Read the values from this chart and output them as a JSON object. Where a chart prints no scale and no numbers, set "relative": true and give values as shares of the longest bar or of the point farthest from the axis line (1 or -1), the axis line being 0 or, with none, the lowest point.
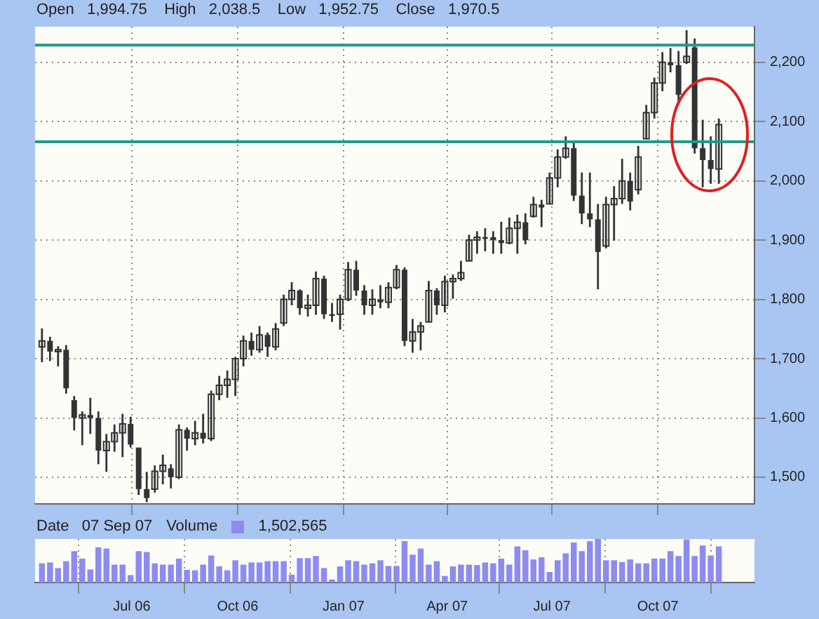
{
  "chart_data": [
    {
      "type": "candlestick",
      "subtitle": "Open   1,994.75    High   2,038.5    Low   1,952.75    Close   1,970.5",
      "color": "#333333",
      "x": [
        "2006-04-14",
        "2006-04-21",
        "2006-04-28",
        "2006-05-05",
        "2006-05-12",
        "2006-05-19",
        "2006-05-26",
        "2006-06-02",
        "2006-06-09",
        "2006-06-16",
        "2006-06-23",
        "2006-06-30",
        "2006-07-07",
        "2006-07-14",
        "2006-07-21",
        "2006-07-28",
        "2006-08-04",
        "2006-08-11",
        "2006-08-18",
        "2006-08-25",
        "2006-09-01",
        "2006-09-08",
        "2006-09-15",
        "2006-09-22",
        "2006-09-29",
        "2006-10-06",
        "2006-10-13",
        "2006-10-20",
        "2006-10-27",
        "2006-11-03",
        "2006-11-10",
        "2006-11-17",
        "2006-11-24",
        "2006-12-01",
        "2006-12-08",
        "2006-12-15",
        "2006-12-22",
        "2006-12-29",
        "2007-01-05",
        "2007-01-12",
        "2007-01-19",
        "2007-01-26",
        "2007-02-02",
        "2007-02-09",
        "2007-02-16",
        "2007-02-23",
        "2007-03-02",
        "2007-03-09",
        "2007-03-16",
        "2007-03-23",
        "2007-03-30",
        "2007-04-06",
        "2007-04-13",
        "2007-04-20",
        "2007-04-27",
        "2007-05-04",
        "2007-05-11",
        "2007-05-18",
        "2007-05-25",
        "2007-06-01",
        "2007-06-08",
        "2007-06-15",
        "2007-06-22",
        "2007-06-29",
        "2007-07-06",
        "2007-07-13",
        "2007-07-20",
        "2007-07-27",
        "2007-08-03",
        "2007-08-10",
        "2007-08-17",
        "2007-08-24",
        "2007-08-31",
        "2007-09-07",
        "2007-09-14",
        "2007-09-21",
        "2007-09-28",
        "2007-10-05",
        "2007-10-12",
        "2007-10-19",
        "2007-10-26",
        "2007-11-02",
        "2007-11-09",
        "2007-11-16",
        "2007-11-23"
      ],
      "ohlc": [
        [
          1720,
          1751,
          1694,
          1730
        ],
        [
          1730,
          1737,
          1696,
          1712
        ],
        [
          1712,
          1721,
          1687,
          1715
        ],
        [
          1715,
          1723,
          1641,
          1650
        ],
        [
          1630,
          1637,
          1579,
          1600
        ],
        [
          1600,
          1611,
          1554,
          1605
        ],
        [
          1605,
          1634,
          1573,
          1600
        ],
        [
          1600,
          1611,
          1522,
          1545
        ],
        [
          1545,
          1573,
          1509,
          1560
        ],
        [
          1560,
          1589,
          1543,
          1575
        ],
        [
          1575,
          1607,
          1534,
          1590
        ],
        [
          1590,
          1602,
          1550,
          1555
        ],
        [
          1550,
          1550,
          1470,
          1480
        ],
        [
          1480,
          1509,
          1458,
          1465
        ],
        [
          1480,
          1520,
          1474,
          1510
        ],
        [
          1510,
          1538,
          1488,
          1520
        ],
        [
          1515,
          1522,
          1481,
          1500
        ],
        [
          1500,
          1589,
          1497,
          1580
        ],
        [
          1580,
          1584,
          1545,
          1565
        ],
        [
          1565,
          1595,
          1554,
          1575
        ],
        [
          1575,
          1607,
          1557,
          1565
        ],
        [
          1565,
          1646,
          1561,
          1640
        ],
        [
          1640,
          1671,
          1630,
          1655
        ],
        [
          1655,
          1680,
          1634,
          1665
        ],
        [
          1665,
          1703,
          1637,
          1700
        ],
        [
          1700,
          1739,
          1687,
          1730
        ],
        [
          1730,
          1744,
          1705,
          1715
        ],
        [
          1715,
          1755,
          1710,
          1740
        ],
        [
          1740,
          1744,
          1703,
          1720
        ],
        [
          1720,
          1760,
          1714,
          1750
        ],
        [
          1760,
          1808,
          1755,
          1800
        ],
        [
          1800,
          1829,
          1790,
          1815
        ],
        [
          1815,
          1817,
          1774,
          1785
        ],
        [
          1785,
          1808,
          1771,
          1790
        ],
        [
          1790,
          1847,
          1774,
          1835
        ],
        [
          1835,
          1840,
          1767,
          1775
        ],
        [
          1775,
          1794,
          1762,
          1775
        ],
        [
          1775,
          1808,
          1749,
          1800
        ],
        [
          1800,
          1863,
          1797,
          1850
        ],
        [
          1850,
          1865,
          1806,
          1815
        ],
        [
          1815,
          1824,
          1774,
          1790
        ],
        [
          1790,
          1817,
          1774,
          1800
        ],
        [
          1800,
          1824,
          1785,
          1795
        ],
        [
          1795,
          1829,
          1785,
          1820
        ],
        [
          1820,
          1858,
          1817,
          1850
        ],
        [
          1850,
          1854,
          1721,
          1730
        ],
        [
          1730,
          1767,
          1710,
          1745
        ],
        [
          1745,
          1762,
          1714,
          1755
        ],
        [
          1762,
          1831,
          1762,
          1815
        ],
        [
          1815,
          1819,
          1774,
          1790
        ],
        [
          1790,
          1840,
          1778,
          1830
        ],
        [
          1830,
          1842,
          1801,
          1835
        ],
        [
          1835,
          1865,
          1831,
          1845
        ],
        [
          1865,
          1909,
          1865,
          1900
        ],
        [
          1900,
          1915,
          1877,
          1905
        ],
        [
          1905,
          1920,
          1881,
          1905
        ],
        [
          1905,
          1915,
          1877,
          1900
        ],
        [
          1900,
          1931,
          1877,
          1895
        ],
        [
          1895,
          1938,
          1893,
          1920
        ],
        [
          1920,
          1943,
          1877,
          1930
        ],
        [
          1930,
          1945,
          1893,
          1900
        ],
        [
          1940,
          1973,
          1938,
          1960
        ],
        [
          1960,
          1968,
          1922,
          1955
        ],
        [
          1961,
          2014,
          1961,
          2005
        ],
        [
          2005,
          2053,
          1989,
          2040
        ],
        [
          2040,
          2075,
          2037,
          2055
        ],
        [
          2055,
          2064,
          1966,
          1975
        ],
        [
          1975,
          2014,
          1927,
          1945
        ],
        [
          1945,
          2014,
          1922,
          1935
        ],
        [
          1935,
          1961,
          1817,
          1880
        ],
        [
          1890,
          1973,
          1886,
          1960
        ],
        [
          1960,
          1991,
          1899,
          1970
        ],
        [
          1970,
          2037,
          1961,
          2000
        ],
        [
          2000,
          2014,
          1950,
          1965
        ],
        [
          1985,
          2059,
          1977,
          2040
        ],
        [
          2071,
          2128,
          2071,
          2115
        ],
        [
          2115,
          2174,
          2105,
          2165
        ],
        [
          2165,
          2217,
          2151,
          2200
        ],
        [
          2200,
          2224,
          2183,
          2195
        ],
        [
          2195,
          2219,
          2128,
          2145
        ],
        [
          2200,
          2254,
          2197,
          2210
        ],
        [
          2225,
          2240,
          2046,
          2055
        ],
        [
          2055,
          2103,
          1989,
          2035
        ],
        [
          2035,
          2075,
          1995,
          2020
        ],
        [
          2020,
          2105,
          1995,
          2095
        ]
      ],
      "xlim": [
        "2006-04-08",
        "2007-12-24"
      ],
      "xticks": [
        {
          "value": "2006-07-01",
          "label": null
        },
        {
          "value": "2006-10-01",
          "label": null
        },
        {
          "value": "2007-01-01",
          "label": null
        },
        {
          "value": "2007-04-01",
          "label": null
        },
        {
          "value": "2007-07-01",
          "label": null
        },
        {
          "value": "2007-10-01",
          "label": null
        }
      ],
      "ylim": [
        1455,
        2260
      ],
      "yticks": [
        {
          "value": 1500,
          "label": "1,500"
        },
        {
          "value": 1600,
          "label": "1,600"
        },
        {
          "value": 1700,
          "label": "1,700"
        },
        {
          "value": 1800,
          "label": "1,800"
        },
        {
          "value": 1900,
          "label": "1,900"
        },
        {
          "value": 2000,
          "label": "2,000"
        },
        {
          "value": 2100,
          "label": "2,100"
        },
        {
          "value": 2200,
          "label": "2,200"
        }
      ],
      "ref_lines": [
        {
          "axis": "y",
          "value": 2229,
          "color": "#1f9a8c"
        },
        {
          "axis": "y",
          "value": 2066,
          "color": "#1f9a8c"
        }
      ],
      "grid": true,
      "tick_labels": "y"
    },
    {
      "type": "bar",
      "relative": true,
      "legend": "top left",
      "annotations": [
        "Date   07 Sep 07",
        "1,502,565"
      ],
      "x": [
        "2006-04-14",
        "2006-04-21",
        "2006-04-28",
        "2006-05-05",
        "2006-05-12",
        "2006-05-19",
        "2006-05-26",
        "2006-06-02",
        "2006-06-09",
        "2006-06-16",
        "2006-06-23",
        "2006-06-30",
        "2006-07-07",
        "2006-07-14",
        "2006-07-21",
        "2006-07-28",
        "2006-08-04",
        "2006-08-11",
        "2006-08-18",
        "2006-08-25",
        "2006-09-01",
        "2006-09-08",
        "2006-09-15",
        "2006-09-22",
        "2006-09-29",
        "2006-10-06",
        "2006-10-13",
        "2006-10-20",
        "2006-10-27",
        "2006-11-03",
        "2006-11-10",
        "2006-11-17",
        "2006-11-24",
        "2006-12-01",
        "2006-12-08",
        "2006-12-15",
        "2006-12-22",
        "2006-12-29",
        "2007-01-05",
        "2007-01-12",
        "2007-01-19",
        "2007-01-26",
        "2007-02-02",
        "2007-02-09",
        "2007-02-16",
        "2007-02-23",
        "2007-03-02",
        "2007-03-09",
        "2007-03-16",
        "2007-03-23",
        "2007-03-30",
        "2007-04-06",
        "2007-04-13",
        "2007-04-20",
        "2007-04-27",
        "2007-05-04",
        "2007-05-11",
        "2007-05-18",
        "2007-05-25",
        "2007-06-01",
        "2007-06-08",
        "2007-06-15",
        "2007-06-22",
        "2007-06-29",
        "2007-07-06",
        "2007-07-13",
        "2007-07-20",
        "2007-07-27",
        "2007-08-03",
        "2007-08-10",
        "2007-08-17",
        "2007-08-24",
        "2007-08-31",
        "2007-09-07",
        "2007-09-14",
        "2007-09-21",
        "2007-09-28",
        "2007-10-05",
        "2007-10-12",
        "2007-10-19",
        "2007-10-26",
        "2007-11-02",
        "2007-11-09",
        "2007-11-16",
        "2007-11-23"
      ],
      "series": [
        {
          "name": "Volume",
          "color": "#8c8cf0",
          "values": [
            0.43,
            0.45,
            0.32,
            0.48,
            0.71,
            0.54,
            0.29,
            0.8,
            0.77,
            0.4,
            0.4,
            0.16,
            0.71,
            0.69,
            0.43,
            0.4,
            0.4,
            0.54,
            0.28,
            0.27,
            0.4,
            0.61,
            0.36,
            0.27,
            0.5,
            0.4,
            0.45,
            0.45,
            0.48,
            0.48,
            0.48,
            0.17,
            0.55,
            0.55,
            0.6,
            0.32,
            0.06,
            0.36,
            0.5,
            0.48,
            0.4,
            0.43,
            0.5,
            0.37,
            0.37,
            0.94,
            0.63,
            0.77,
            0.4,
            0.48,
            0.14,
            0.36,
            0.4,
            0.4,
            0.39,
            0.45,
            0.43,
            0.54,
            0.4,
            0.82,
            0.73,
            0.52,
            0.57,
            0.23,
            0.5,
            0.66,
            0.91,
            0.71,
            0.94,
            1,
            0.5,
            0.5,
            0.46,
            0.52,
            0.43,
            0.43,
            0.54,
            0.54,
            0.71,
            0.6,
            0.98,
            0.6,
            0.84,
            0.61,
            0.82
          ]
        }
      ],
      "xlim": [
        "2006-04-08",
        "2007-12-24"
      ],
      "xticks": [
        {
          "value": "2006-07-01",
          "label": "Jul 06"
        },
        {
          "value": "2006-10-01",
          "label": "Oct 06"
        },
        {
          "value": "2007-01-01",
          "label": "Jan 07"
        },
        {
          "value": "2007-04-01",
          "label": "Apr 07"
        },
        {
          "value": "2007-07-01",
          "label": "Jul 07"
        },
        {
          "value": "2007-10-01",
          "label": "Oct 07"
        }
      ],
      "grid": "x",
      "tick_labels": "x"
    }
  ]
}
